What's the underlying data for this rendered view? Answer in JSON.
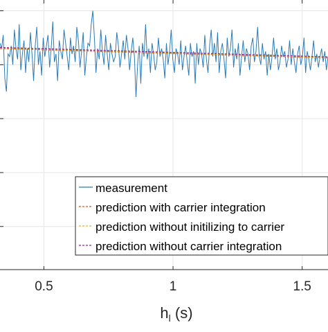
{
  "chart_data": {
    "type": "line",
    "xlabel": "h",
    "xlabel_subscript": "l",
    "xlabel_unit": " (s)",
    "xlim": [
      0.33,
      1.6
    ],
    "ylim": [
      0,
      1
    ],
    "x_ticks": [
      {
        "value": 0.5,
        "label": "0.5"
      },
      {
        "value": 1,
        "label": "1"
      },
      {
        "value": 1.5,
        "label": "1.5"
      }
    ],
    "y_grid": [
      0.16,
      0.36,
      0.56,
      0.76,
      0.96
    ],
    "grid": true,
    "legend_position": "bottom-right",
    "series": [
      {
        "name": "measurement",
        "color": "#2a7ab7",
        "style": "solid",
        "x_start": 0.33,
        "x_end": 1.6,
        "values": [
          0.84,
          0.82,
          0.87,
          0.71,
          0.66,
          0.8,
          0.79,
          0.83,
          0.76,
          0.89,
          0.82,
          0.78,
          0.91,
          0.74,
          0.8,
          0.85,
          0.73,
          0.82,
          0.77,
          0.88,
          0.8,
          0.7,
          0.83,
          0.9,
          0.76,
          0.81,
          0.72,
          0.86,
          0.79,
          0.83,
          0.87,
          0.75,
          0.82,
          0.92,
          0.77,
          0.8,
          0.7,
          0.85,
          0.81,
          0.78,
          0.89,
          0.84,
          0.79,
          0.74,
          0.86,
          0.8,
          0.83,
          0.77,
          0.9,
          0.85,
          0.75,
          0.81,
          0.88,
          0.72,
          0.79,
          0.84,
          0.83,
          0.91,
          0.96,
          0.86,
          0.73,
          0.82,
          0.78,
          0.89,
          0.81,
          0.76,
          0.87,
          0.8,
          0.74,
          0.84,
          0.8,
          0.77,
          0.79,
          0.88,
          0.83,
          0.75,
          0.8,
          0.85,
          0.78,
          0.87,
          0.82,
          0.74,
          0.81,
          0.86,
          0.79,
          0.64,
          0.76,
          0.83,
          0.69,
          0.84,
          0.79,
          0.91,
          0.78,
          0.82,
          0.73,
          0.84,
          0.8,
          0.74,
          0.77,
          0.86,
          0.79,
          0.82,
          0.78,
          0.71,
          0.84,
          0.76,
          0.81,
          0.89,
          0.78,
          0.73,
          0.82,
          0.8,
          0.76,
          0.85,
          0.74,
          0.79,
          0.83,
          0.77,
          0.72,
          0.84,
          0.79,
          0.81,
          0.69,
          0.84,
          0.76,
          0.82,
          0.8,
          0.75,
          0.87,
          0.78,
          0.73,
          0.83,
          0.89,
          0.79,
          0.84,
          0.77,
          0.88,
          0.73,
          0.81,
          0.84,
          0.78,
          0.71,
          0.86,
          0.79,
          0.82,
          0.89,
          0.75,
          0.82,
          0.78,
          0.84,
          0.72,
          0.79,
          0.85,
          0.77,
          0.82,
          0.8,
          0.74,
          0.83,
          0.86,
          0.77,
          0.81,
          0.9,
          0.79,
          0.76,
          0.84,
          0.78,
          0.81,
          0.72,
          0.8,
          0.74,
          0.79,
          0.86,
          0.78,
          0.82,
          0.74,
          0.77,
          0.83,
          0.79,
          0.81,
          0.75,
          0.78,
          0.85,
          0.76,
          0.82,
          0.77,
          0.73,
          0.8,
          0.83,
          0.76,
          0.79,
          0.86,
          0.73,
          0.81,
          0.78,
          0.74,
          0.79,
          0.85,
          0.77,
          0.8,
          0.75,
          0.79,
          0.82,
          0.77,
          0.81,
          0.74,
          0.79
        ]
      },
      {
        "name": "prediction with carrier integration",
        "color": "#d95319",
        "style": "dashed",
        "x": [
          0.33,
          1.6
        ],
        "y": [
          0.82,
          0.785
        ]
      },
      {
        "name": "prediction without initilizing to carrier",
        "color": "#edb120",
        "style": "dashed",
        "x": [
          0.33,
          1.6
        ],
        "y": [
          0.822,
          0.787
        ]
      },
      {
        "name": "prediction without carrier integration",
        "color": "#7e2f8e",
        "style": "dashed",
        "x": [
          0.33,
          1.6
        ],
        "y": [
          0.824,
          0.789
        ]
      }
    ]
  }
}
